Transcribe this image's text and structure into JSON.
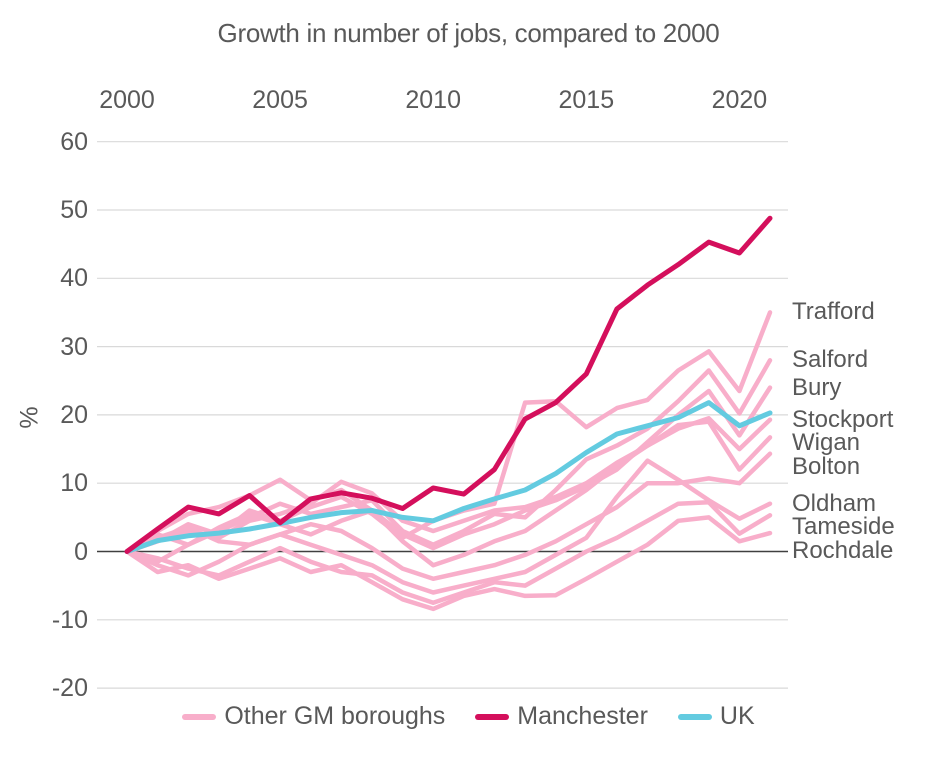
{
  "chart_data": {
    "type": "line",
    "title": "Growth in number of jobs, compared to 2000",
    "xlabel": "",
    "ylabel": "%",
    "x": [
      2000,
      2001,
      2002,
      2003,
      2004,
      2005,
      2006,
      2007,
      2008,
      2009,
      2010,
      2011,
      2012,
      2013,
      2014,
      2015,
      2016,
      2017,
      2018,
      2019,
      2020,
      2021
    ],
    "x_ticks": [
      2000,
      2005,
      2010,
      2015,
      2020
    ],
    "x_axis_position": "top",
    "y_ticks": [
      60,
      50,
      40,
      30,
      20,
      10,
      0,
      -10,
      -20
    ],
    "ylim": [
      -20,
      60
    ],
    "grid": "horizontal-only",
    "legend_position": "bottom",
    "colors": {
      "other_gm": "#F8AECA",
      "manchester": "#D40F5C",
      "uk": "#63CBE0",
      "text": "#595959",
      "gridline": "#D9D9D9",
      "zero_line": "#404040"
    },
    "legend": [
      {
        "label": "Other GM boroughs",
        "color_key": "other_gm"
      },
      {
        "label": "Manchester",
        "color_key": "manchester"
      },
      {
        "label": "UK",
        "color_key": "uk"
      }
    ],
    "series": [
      {
        "name": "Rochdale",
        "group": "other_gm",
        "end_label": true,
        "values": [
          0,
          -3,
          -2,
          -4,
          -2.5,
          -1,
          -3,
          -2,
          -4.5,
          -7,
          -8.4,
          -6.5,
          -5.5,
          -6.5,
          -6.4,
          -4,
          -1.5,
          1,
          4.5,
          5,
          1.5,
          2.7
        ]
      },
      {
        "name": "Tameside",
        "group": "other_gm",
        "end_label": true,
        "values": [
          0,
          -1,
          -2.5,
          -3.5,
          -1.5,
          0.5,
          -1.5,
          -3,
          -3.5,
          -6,
          -7.5,
          -6,
          -4.5,
          -5,
          -2.5,
          0,
          2,
          4.5,
          7,
          7.2,
          2.6,
          5.3
        ]
      },
      {
        "name": "Oldham",
        "group": "other_gm",
        "end_label": true,
        "values": [
          0,
          -2,
          -3.5,
          -1.5,
          1,
          2.5,
          1,
          -0.5,
          -2,
          -4.5,
          -6,
          -5,
          -4,
          -3,
          -0.5,
          2,
          8,
          13.3,
          10.5,
          7.5,
          4.8,
          7
        ]
      },
      {
        "name": "Bolton",
        "group": "other_gm",
        "end_label": true,
        "values": [
          0,
          2,
          3.5,
          1.5,
          1,
          2.5,
          4,
          3,
          0.5,
          -2.5,
          -4,
          -3,
          -2,
          -0.5,
          1.5,
          4,
          6.5,
          10,
          10,
          10.7,
          10,
          14.3
        ]
      },
      {
        "name": "Wigan",
        "group": "other_gm",
        "end_label": true,
        "values": [
          0,
          -1.5,
          1,
          3.5,
          5.5,
          4,
          2.5,
          4.5,
          6,
          1.5,
          -2,
          -0.5,
          1.5,
          3,
          6,
          9,
          12.5,
          15.5,
          18.5,
          19,
          12,
          16.7
        ]
      },
      {
        "name": "Stockport",
        "group": "other_gm",
        "end_label": true,
        "values": [
          0,
          1.5,
          3,
          2,
          4.5,
          5.5,
          7,
          10.2,
          8.5,
          4.5,
          3,
          4.5,
          6,
          6.5,
          8,
          10,
          13,
          15.5,
          18,
          19.5,
          15,
          19.3
        ]
      },
      {
        "name": "Bury",
        "group": "other_gm",
        "end_label": true,
        "values": [
          0,
          3,
          5.5,
          6.5,
          8.2,
          10.5,
          7.5,
          9,
          6,
          2.5,
          0.5,
          2.5,
          4,
          6,
          7.5,
          9.5,
          12,
          16,
          20,
          23.5,
          17,
          24
        ]
      },
      {
        "name": "Salford",
        "group": "other_gm",
        "end_label": true,
        "values": [
          0,
          2.5,
          1,
          3,
          5,
          7,
          5.5,
          6.5,
          7.5,
          3,
          1,
          3,
          5.5,
          5,
          9,
          13.5,
          15.5,
          18,
          22,
          26.5,
          20.2,
          28
        ]
      },
      {
        "name": "Trafford",
        "group": "other_gm",
        "end_label": true,
        "values": [
          0,
          1.5,
          4,
          2.5,
          6,
          4.5,
          6.5,
          8,
          5.5,
          2,
          4.5,
          6,
          7,
          21.8,
          22,
          18.2,
          21,
          22.2,
          26.5,
          29.3,
          23.5,
          35
        ]
      },
      {
        "name": "UK",
        "group": "uk",
        "end_label": false,
        "values": [
          0,
          1.6,
          2.3,
          2.7,
          3.3,
          4.1,
          5,
          5.7,
          6,
          5,
          4.5,
          6.3,
          7.7,
          9,
          11.4,
          14.5,
          17.2,
          18.4,
          19.6,
          21.8,
          18.4,
          20.3
        ]
      },
      {
        "name": "Manchester",
        "group": "manchester",
        "end_label": false,
        "values": [
          0,
          3.3,
          6.5,
          5.5,
          8.2,
          4.2,
          7.7,
          8.6,
          7.8,
          6.3,
          9.3,
          8.4,
          12,
          19.4,
          21.8,
          26,
          35.5,
          39,
          42,
          45.3,
          43.7,
          48.8
        ]
      }
    ]
  }
}
